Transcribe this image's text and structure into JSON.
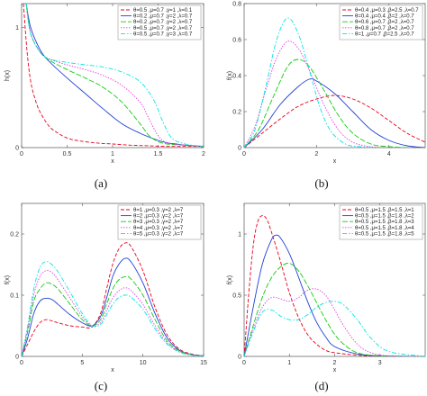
{
  "colors": [
    "#e8001c",
    "#1f3fd6",
    "#11cc11",
    "#e040e0",
    "#00e5e5"
  ],
  "chart_data": [
    {
      "type": "line",
      "caption": "(a)",
      "xlabel": "x",
      "ylabel": "h(x)",
      "xlim": [
        0,
        2
      ],
      "ylim": [
        0,
        1.2
      ],
      "xticks": [
        0,
        0.5,
        1,
        1.5,
        2
      ],
      "xtick_labels": [
        "0",
        "0.5",
        "1",
        "1.5",
        "2"
      ],
      "yticks": [
        0,
        1
      ],
      "ytick_labels": [
        "0",
        "1"
      ],
      "legend_position": "top-right",
      "series": [
        {
          "name": "θ=0.5 ,μ=0.7 ,γ=1 ,λ=0.1",
          "x": [
            0.02,
            0.06,
            0.1,
            0.15,
            0.2,
            0.3,
            0.4,
            0.5,
            0.6,
            0.8,
            1.0,
            1.2,
            1.4,
            1.6,
            1.8,
            2.0
          ],
          "y": [
            1.2,
            0.8,
            0.55,
            0.4,
            0.3,
            0.18,
            0.12,
            0.08,
            0.06,
            0.04,
            0.03,
            0.02,
            0.015,
            0.01,
            0.01,
            0.01
          ]
        },
        {
          "name": "θ=0.2 ,μ=0.7 ,γ=2 ,λ=0.7",
          "x": [
            0.05,
            0.1,
            0.2,
            0.3,
            0.5,
            0.7,
            0.9,
            1.1,
            1.3,
            1.5,
            1.6,
            1.7,
            1.8,
            2.0
          ],
          "y": [
            1.2,
            1.0,
            0.82,
            0.72,
            0.58,
            0.45,
            0.32,
            0.2,
            0.12,
            0.06,
            0.04,
            0.03,
            0.02,
            0.01
          ]
        },
        {
          "name": "θ=0.2 ,μ=0.7 ,γ=2 ,λ=0.7",
          "x": [
            0.05,
            0.1,
            0.2,
            0.3,
            0.5,
            0.7,
            0.9,
            1.1,
            1.3,
            1.4,
            1.5,
            1.6,
            1.8,
            2.0
          ],
          "y": [
            1.2,
            0.95,
            0.8,
            0.73,
            0.65,
            0.58,
            0.5,
            0.38,
            0.2,
            0.1,
            0.05,
            0.03,
            0.02,
            0.01
          ]
        },
        {
          "name": "θ=0.5 ,μ=0.7 ,γ=2 ,λ=0.7",
          "x": [
            0.05,
            0.1,
            0.2,
            0.3,
            0.5,
            0.7,
            0.9,
            1.1,
            1.3,
            1.4,
            1.5,
            1.6,
            1.8,
            2.0
          ],
          "y": [
            1.2,
            0.95,
            0.8,
            0.74,
            0.69,
            0.65,
            0.6,
            0.52,
            0.38,
            0.24,
            0.1,
            0.04,
            0.02,
            0.01
          ]
        },
        {
          "name": "θ=0.5 ,μ=0.7 ,γ=3 ,λ=0.7",
          "x": [
            0.05,
            0.1,
            0.2,
            0.3,
            0.5,
            0.7,
            0.9,
            1.1,
            1.3,
            1.45,
            1.55,
            1.65,
            1.8,
            2.0
          ],
          "y": [
            1.2,
            0.95,
            0.8,
            0.74,
            0.71,
            0.69,
            0.67,
            0.63,
            0.55,
            0.4,
            0.22,
            0.08,
            0.03,
            0.01
          ]
        }
      ]
    },
    {
      "type": "line",
      "caption": "(b)",
      "xlabel": "x",
      "ylabel": "f(x)",
      "xlim": [
        0,
        5
      ],
      "ylim": [
        0,
        0.8
      ],
      "xticks": [
        0,
        2,
        4
      ],
      "xtick_labels": [
        "0",
        "2",
        "4"
      ],
      "yticks": [
        0,
        0.2,
        0.4,
        0.6,
        0.8
      ],
      "ytick_labels": [
        "0",
        "0.2",
        "0.4",
        "0.6",
        "0.8"
      ],
      "legend_position": "top-right",
      "series": [
        {
          "name": "θ=0.4 ,μ=0.3 ,β=2.5 ,λ=0.7",
          "x": [
            0,
            0.5,
            1.0,
            1.5,
            2.0,
            2.5,
            3.0,
            3.5,
            4.0,
            4.5,
            5.0
          ],
          "y": [
            0,
            0.08,
            0.16,
            0.23,
            0.27,
            0.29,
            0.27,
            0.22,
            0.15,
            0.08,
            0.03
          ]
        },
        {
          "name": "θ=0.4 ,μ=0.4 ,β=2 ,λ=0.7",
          "x": [
            0,
            0.5,
            1.0,
            1.5,
            1.8,
            2.0,
            2.5,
            3.0,
            3.5,
            4.0,
            4.5,
            5.0
          ],
          "y": [
            0,
            0.1,
            0.24,
            0.34,
            0.38,
            0.37,
            0.3,
            0.2,
            0.1,
            0.04,
            0.01,
            0
          ]
        },
        {
          "name": "θ=0.6 ,μ=0.7 ,β=2 ,λ=0.7",
          "x": [
            0,
            0.4,
            0.8,
            1.2,
            1.5,
            1.8,
            2.2,
            2.6,
            3.0,
            3.5,
            4.0,
            4.5
          ],
          "y": [
            0,
            0.1,
            0.28,
            0.45,
            0.49,
            0.45,
            0.32,
            0.18,
            0.08,
            0.02,
            0.005,
            0
          ]
        },
        {
          "name": "θ=0.8 ,μ=0.7 ,β=2 ,λ=0.7",
          "x": [
            0,
            0.3,
            0.6,
            0.9,
            1.2,
            1.5,
            1.8,
            2.2,
            2.6,
            3.0,
            3.5,
            4.0
          ],
          "y": [
            0,
            0.12,
            0.32,
            0.5,
            0.59,
            0.55,
            0.43,
            0.24,
            0.1,
            0.03,
            0.005,
            0
          ]
        },
        {
          "name": "θ=1 ,μ=0.7 ,β=2.5 ,λ=0.7",
          "x": [
            0,
            0.3,
            0.6,
            0.9,
            1.2,
            1.5,
            1.8,
            2.1,
            2.4,
            2.8,
            3.2,
            3.6
          ],
          "y": [
            0,
            0.1,
            0.34,
            0.6,
            0.72,
            0.63,
            0.43,
            0.22,
            0.09,
            0.02,
            0.005,
            0
          ]
        }
      ]
    },
    {
      "type": "line",
      "caption": "(c)",
      "xlabel": "x",
      "ylabel": "f(x)",
      "xlim": [
        0,
        15
      ],
      "ylim": [
        0,
        0.25
      ],
      "xticks": [
        0,
        5,
        10,
        15
      ],
      "xtick_labels": [
        "0",
        "5",
        "10",
        "15"
      ],
      "yticks": [
        0,
        0.1,
        0.2
      ],
      "ytick_labels": [
        "0",
        "0.1",
        "0.2"
      ],
      "legend_position": "top-right",
      "series": [
        {
          "name": "θ=1 ,μ=0.3 ,γ=2 ,λ=7",
          "x": [
            0,
            0.5,
            1,
            1.5,
            2,
            2.5,
            3,
            4,
            5,
            5.8,
            6.5,
            7,
            7.5,
            8,
            8.5,
            9,
            10,
            11,
            12,
            13,
            14,
            15
          ],
          "y": [
            0,
            0.02,
            0.04,
            0.055,
            0.06,
            0.058,
            0.055,
            0.05,
            0.048,
            0.048,
            0.07,
            0.11,
            0.15,
            0.175,
            0.185,
            0.18,
            0.14,
            0.08,
            0.035,
            0.012,
            0.004,
            0.001
          ]
        },
        {
          "name": "θ=2 ,μ=0.3 ,γ=2 ,λ=7",
          "x": [
            0,
            0.5,
            1,
            1.5,
            2,
            2.5,
            3,
            4,
            5,
            5.8,
            6.5,
            7,
            7.5,
            8,
            8.5,
            9,
            10,
            11,
            12,
            13,
            14,
            15
          ],
          "y": [
            0,
            0.03,
            0.07,
            0.09,
            0.095,
            0.093,
            0.085,
            0.068,
            0.055,
            0.05,
            0.065,
            0.095,
            0.13,
            0.15,
            0.16,
            0.155,
            0.12,
            0.07,
            0.03,
            0.01,
            0.003,
            0.001
          ]
        },
        {
          "name": "θ=3 ,μ=0.3 ,γ=2 ,λ=7",
          "x": [
            0,
            0.5,
            1,
            1.5,
            2,
            2.5,
            3,
            4,
            5,
            5.8,
            6.5,
            7,
            7.5,
            8,
            8.5,
            9,
            10,
            11,
            12,
            13,
            14,
            15
          ],
          "y": [
            0,
            0.04,
            0.09,
            0.11,
            0.12,
            0.118,
            0.11,
            0.085,
            0.06,
            0.05,
            0.06,
            0.085,
            0.11,
            0.125,
            0.13,
            0.127,
            0.1,
            0.06,
            0.025,
            0.009,
            0.003,
            0.001
          ]
        },
        {
          "name": "θ=4 ,μ=0.3 ,γ=2 ,λ=7",
          "x": [
            0,
            0.5,
            1,
            1.5,
            2,
            2.5,
            3,
            4,
            5,
            5.8,
            6.5,
            7,
            7.5,
            8,
            8.5,
            9,
            10,
            11,
            12,
            13,
            14,
            15
          ],
          "y": [
            0,
            0.045,
            0.1,
            0.13,
            0.14,
            0.137,
            0.125,
            0.095,
            0.065,
            0.05,
            0.055,
            0.075,
            0.095,
            0.107,
            0.112,
            0.108,
            0.085,
            0.05,
            0.022,
            0.008,
            0.003,
            0.001
          ]
        },
        {
          "name": "θ=5 ,μ=0.3 ,γ=2 ,λ=7",
          "x": [
            0,
            0.5,
            1,
            1.5,
            2,
            2.5,
            3,
            4,
            5,
            5.8,
            6.5,
            7,
            7.5,
            8,
            8.5,
            9,
            10,
            11,
            12,
            13,
            14,
            15
          ],
          "y": [
            0,
            0.05,
            0.11,
            0.145,
            0.155,
            0.15,
            0.138,
            0.105,
            0.07,
            0.05,
            0.052,
            0.068,
            0.085,
            0.096,
            0.1,
            0.097,
            0.077,
            0.045,
            0.02,
            0.007,
            0.002,
            0.001
          ]
        }
      ]
    },
    {
      "type": "line",
      "caption": "(d)",
      "xlabel": "x",
      "ylabel": "f(x)",
      "xlim": [
        0,
        4
      ],
      "ylim": [
        0,
        1.25
      ],
      "xticks": [
        0,
        1,
        2,
        3
      ],
      "xtick_labels": [
        "0",
        "1",
        "2",
        "3"
      ],
      "yticks": [
        0,
        0.5,
        1
      ],
      "ytick_labels": [
        "0",
        "0.5",
        "1"
      ],
      "legend_position": "top-right",
      "series": [
        {
          "name": "θ=0.5 ,μ=1.5 ,β=1.5 ,λ=1",
          "x": [
            0,
            0.1,
            0.2,
            0.3,
            0.4,
            0.5,
            0.6,
            0.8,
            1.0,
            1.2,
            1.4,
            1.6,
            1.8,
            2.0,
            2.5,
            3.0,
            4.0
          ],
          "y": [
            0,
            0.5,
            0.9,
            1.1,
            1.15,
            1.12,
            1.02,
            0.78,
            0.52,
            0.32,
            0.18,
            0.1,
            0.05,
            0.03,
            0.01,
            0,
            0
          ]
        },
        {
          "name": "θ=0.5 ,μ=1.5 ,β=1.8 ,λ=2",
          "x": [
            0,
            0.2,
            0.4,
            0.6,
            0.7,
            0.8,
            1.0,
            1.2,
            1.4,
            1.6,
            1.8,
            2.0,
            2.5,
            3.0,
            4.0
          ],
          "y": [
            0,
            0.4,
            0.75,
            0.95,
            0.99,
            0.97,
            0.84,
            0.65,
            0.45,
            0.28,
            0.16,
            0.08,
            0.02,
            0.005,
            0
          ]
        },
        {
          "name": "θ=0.5 ,μ=1.5 ,β=1.8 ,λ=3",
          "x": [
            0,
            0.2,
            0.4,
            0.6,
            0.8,
            1.0,
            1.2,
            1.4,
            1.6,
            1.8,
            2.0,
            2.2,
            2.5,
            3.0,
            4.0
          ],
          "y": [
            0,
            0.25,
            0.48,
            0.64,
            0.73,
            0.76,
            0.7,
            0.58,
            0.44,
            0.3,
            0.18,
            0.1,
            0.03,
            0.005,
            0
          ]
        },
        {
          "name": "θ=0.5 ,μ=1.5 ,β=1.8 ,λ=4",
          "x": [
            0,
            0.2,
            0.4,
            0.6,
            0.8,
            1.0,
            1.2,
            1.4,
            1.6,
            1.8,
            2.0,
            2.2,
            2.5,
            2.8,
            3.2,
            4.0
          ],
          "y": [
            0,
            0.22,
            0.4,
            0.48,
            0.47,
            0.45,
            0.48,
            0.54,
            0.55,
            0.5,
            0.38,
            0.25,
            0.1,
            0.03,
            0.005,
            0
          ]
        },
        {
          "name": "θ=0.5 ,μ=1.5 ,β=1.8 ,λ=5",
          "x": [
            0,
            0.2,
            0.4,
            0.6,
            0.8,
            1.0,
            1.2,
            1.4,
            1.6,
            1.8,
            2.0,
            2.2,
            2.5,
            2.8,
            3.2,
            4.0
          ],
          "y": [
            0,
            0.2,
            0.36,
            0.38,
            0.33,
            0.3,
            0.3,
            0.34,
            0.4,
            0.44,
            0.45,
            0.42,
            0.3,
            0.15,
            0.04,
            0
          ]
        }
      ]
    }
  ]
}
